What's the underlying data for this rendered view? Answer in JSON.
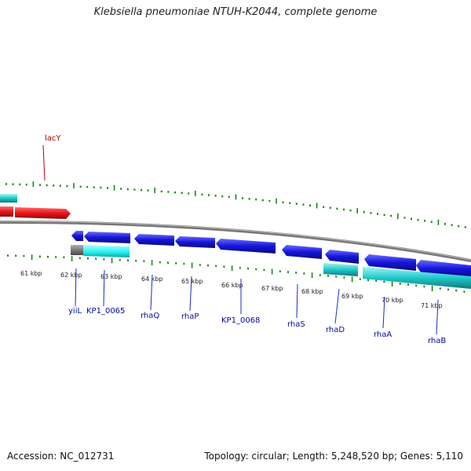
{
  "title": "Klebsiella pneumoniae NTUH-K2044, complete genome",
  "footer": {
    "accession": "Accession: NC_012731",
    "topology": "Topology: circular; Length: 5,248,520 bp; Genes: 5,110"
  },
  "colors": {
    "forward_gene": "#e8141b",
    "reverse_gene": "#1515d8",
    "forward_cds": "#1fc9c9",
    "reverse_cds": "#1fe8e8",
    "tick": "#138a13",
    "backbone": "#8a8a8a",
    "label": "#000c9c"
  },
  "scale_labels": [
    "61 kbp",
    "62 kbp",
    "63 kbp",
    "64 kbp",
    "65 kbp",
    "66 kbp",
    "67 kbp",
    "68 kbp",
    "69 kbp",
    "70 kbp",
    "71 kbp"
  ],
  "genes": [
    {
      "name": "lacY",
      "strand": "forward"
    },
    {
      "name": "yiiL",
      "strand": "reverse"
    },
    {
      "name": "KP1_0065",
      "strand": "reverse"
    },
    {
      "name": "rhaQ",
      "strand": "reverse"
    },
    {
      "name": "rhaP",
      "strand": "reverse"
    },
    {
      "name": "KP1_0068",
      "strand": "reverse"
    },
    {
      "name": "rhaS",
      "strand": "reverse"
    },
    {
      "name": "rhaD",
      "strand": "reverse"
    },
    {
      "name": "rhaA",
      "strand": "reverse"
    },
    {
      "name": "rhaB",
      "strand": "reverse"
    }
  ]
}
